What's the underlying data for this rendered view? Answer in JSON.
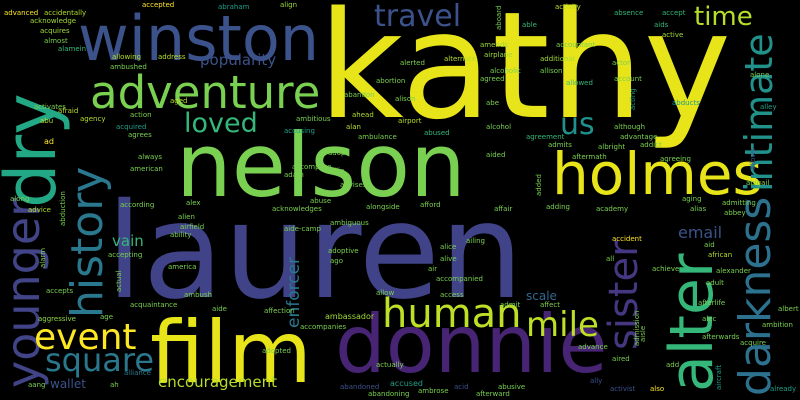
{
  "words": [
    {
      "text": "kathy",
      "color": "#e7e419",
      "i": "w-kathy"
    },
    {
      "text": "lauren",
      "color": "#404387",
      "i": "w-lauren"
    },
    {
      "text": "nelson",
      "color": "#7ad151",
      "i": "w-nelson"
    },
    {
      "text": "film",
      "color": "#e7e419",
      "i": "w-film"
    },
    {
      "text": "donnie",
      "color": "#482475",
      "i": "w-donnie"
    },
    {
      "text": "winston",
      "color": "#3b528b",
      "i": "w-winston"
    },
    {
      "text": "dry",
      "color": "#22a884",
      "i": "w-dry"
    },
    {
      "text": "adventure",
      "color": "#7ad151",
      "i": "w-adventure"
    },
    {
      "text": "holmes",
      "color": "#e7e419",
      "i": "w-holmes"
    },
    {
      "text": "history",
      "color": "#2a788e",
      "i": "w-history"
    },
    {
      "text": "younger",
      "color": "#414487",
      "i": "w-younger"
    },
    {
      "text": "alter",
      "color": "#35b779",
      "i": "w-alter"
    },
    {
      "text": "darkness",
      "color": "#2c728e",
      "i": "w-darkness"
    },
    {
      "text": "intimate",
      "color": "#21918c",
      "i": "w-intimate"
    },
    {
      "text": "sister",
      "color": "#453781",
      "i": "w-sister"
    },
    {
      "text": "human",
      "color": "#bddf26",
      "i": "w-human"
    },
    {
      "text": "mile",
      "color": "#bddf26",
      "i": "w-mile"
    },
    {
      "text": "event",
      "color": "#fde725",
      "i": "w-event"
    },
    {
      "text": "square",
      "color": "#2a788e",
      "i": "w-square"
    },
    {
      "text": "travel",
      "color": "#3b528b",
      "i": "w-travel"
    },
    {
      "text": "time",
      "color": "#b5de2b",
      "i": "w-time"
    },
    {
      "text": "loved",
      "color": "#35b779",
      "i": "w-loved"
    },
    {
      "text": "us",
      "color": "#21918c",
      "i": "w-us"
    },
    {
      "text": "popularity",
      "color": "#3b528b",
      "i": "w-popularity"
    },
    {
      "text": "encouragement",
      "color": "#b5de2b",
      "i": "w-encouragement"
    },
    {
      "text": "enforcer",
      "color": "#2a788e",
      "i": "w-enforcer"
    },
    {
      "text": "email",
      "color": "#3b528b",
      "i": "w-email"
    },
    {
      "text": "vain",
      "color": "#35b779",
      "i": "w-vain"
    },
    {
      "text": "wallet",
      "color": "#3b528b",
      "i": "w-wallet"
    },
    {
      "text": "scale",
      "color": "#31688e",
      "i": "w-scale"
    },
    {
      "text": "ambassador",
      "color": "#a0da39",
      "i": "w-ambassador"
    },
    {
      "text": "accused",
      "color": "#1f9e89",
      "i": "w-accused"
    },
    {
      "text": "alliance",
      "color": "#2a788e",
      "i": "w-alliance"
    },
    {
      "text": "advice",
      "color": "#b5de2b",
      "i": "w-advice"
    },
    {
      "text": "aggressive",
      "color": "#90d743",
      "i": "w-aggressive"
    },
    {
      "text": "airport",
      "color": "#b5de2b",
      "i": "w-airport"
    },
    {
      "text": "african",
      "color": "#b5de2b",
      "i": "w-african"
    },
    {
      "text": "ad",
      "color": "#fde725",
      "i": "w-ad"
    },
    {
      "text": "abandoned",
      "color": "#3b528b",
      "i": "w-abandoned"
    },
    {
      "text": "acid",
      "color": "#3b528b",
      "i": "w-acid"
    },
    {
      "text": "abusive",
      "color": "#7ad151",
      "i": "w-abusive"
    },
    {
      "text": "afterward",
      "color": "#7ad151",
      "i": "w-afterward"
    },
    {
      "text": "ally",
      "color": "#3b528b",
      "i": "w-ally"
    },
    {
      "text": "activist",
      "color": "#3b528b",
      "i": "w-activist"
    },
    {
      "text": "also",
      "color": "#fde725",
      "i": "w-also"
    },
    {
      "text": "already",
      "color": "#1f9e89",
      "i": "w-already"
    },
    {
      "text": "aircraft",
      "color": "#1f9e89",
      "i": "w-aircraft"
    },
    {
      "text": "advanced",
      "color": "#fde725",
      "i": "w-advanced"
    },
    {
      "text": "accidentally",
      "color": "#b5de2b",
      "i": "w-accidentally"
    },
    {
      "text": "acknowledge",
      "color": "#a0da39",
      "i": "w-acknowledge"
    },
    {
      "text": "acquires",
      "color": "#a0da39",
      "i": "w-acquires"
    },
    {
      "text": "almost",
      "color": "#7ad151",
      "i": "w-almost"
    },
    {
      "text": "alamein",
      "color": "#35b779",
      "i": "w-alamein"
    },
    {
      "text": "accepted",
      "color": "#fde725",
      "i": "w-accepted"
    },
    {
      "text": "abraham",
      "color": "#1f9e89",
      "i": "w-abraham"
    },
    {
      "text": "align",
      "color": "#a0da39",
      "i": "w-align"
    },
    {
      "text": "activity",
      "color": "#b5de2b",
      "i": "w-activity"
    },
    {
      "text": "absence",
      "color": "#35b779",
      "i": "w-absence"
    },
    {
      "text": "accept",
      "color": "#35b779",
      "i": "w-accept"
    },
    {
      "text": "aids",
      "color": "#a0da39",
      "i": "w-aids"
    },
    {
      "text": "active",
      "color": "#35b779",
      "i": "w-active"
    },
    {
      "text": "amends",
      "color": "#a0da39",
      "i": "w-amends"
    },
    {
      "text": "able",
      "color": "#a0da39",
      "i": "w-able"
    },
    {
      "text": "actor",
      "color": "#35b779",
      "i": "w-actor"
    },
    {
      "text": "alerted",
      "color": "#7ad151",
      "i": "w-alerted"
    },
    {
      "text": "additional",
      "color": "#7ad151",
      "i": "w-additional"
    },
    {
      "text": "allowing",
      "color": "#a0da39",
      "i": "w-allowing"
    },
    {
      "text": "address",
      "color": "#b5de2b",
      "i": "w-address"
    },
    {
      "text": "alternate",
      "color": "#b5de2b",
      "i": "w-alternate"
    },
    {
      "text": "airplane",
      "color": "#b5de2b",
      "i": "w-airplane"
    },
    {
      "text": "alcoholic",
      "color": "#a0da39",
      "i": "w-alcoholic"
    },
    {
      "text": "allison",
      "color": "#7ad151",
      "i": "w-allison"
    },
    {
      "text": "agreed",
      "color": "#7ad151",
      "i": "w-agreed"
    },
    {
      "text": "account",
      "color": "#7ad151",
      "i": "w-account"
    },
    {
      "text": "alone",
      "color": "#7ad151",
      "i": "w-alone"
    },
    {
      "text": "aged",
      "color": "#7ad151",
      "i": "w-aged"
    },
    {
      "text": "abortion",
      "color": "#b5de2b",
      "i": "w-abortion"
    },
    {
      "text": "allowed",
      "color": "#7ad151",
      "i": "w-allowed"
    },
    {
      "text": "acting",
      "color": "#35b779",
      "i": "w-acting"
    },
    {
      "text": "alley",
      "color": "#1f9e89",
      "i": "w-alley"
    },
    {
      "text": "abducts",
      "color": "#1f9e89",
      "i": "w-abducts"
    },
    {
      "text": "alison",
      "color": "#1f9e89",
      "i": "w-alison"
    },
    {
      "text": "abe",
      "color": "#7ad151",
      "i": "w-abe"
    },
    {
      "text": "activates",
      "color": "#7ad151",
      "i": "w-activates"
    },
    {
      "text": "afraid",
      "color": "#7ad151",
      "i": "w-afraid"
    },
    {
      "text": "abu",
      "color": "#b5de2b",
      "i": "w-abu"
    },
    {
      "text": "agency",
      "color": "#b5de2b",
      "i": "w-agency"
    },
    {
      "text": "ahead",
      "color": "#b5de2b",
      "i": "w-ahead"
    },
    {
      "text": "alan",
      "color": "#b5de2b",
      "i": "w-alan"
    },
    {
      "text": "ambitious",
      "color": "#b5de2b",
      "i": "w-ambitious"
    },
    {
      "text": "alcohol",
      "color": "#7ad151",
      "i": "w-alcohol"
    },
    {
      "text": "although",
      "color": "#7ad151",
      "i": "w-although"
    },
    {
      "text": "allows",
      "color": "#7ad151",
      "i": "w-allows"
    },
    {
      "text": "acquired",
      "color": "#3b528b",
      "i": "w-acquired"
    },
    {
      "text": "accusing",
      "color": "#1f9e89",
      "i": "w-accusing"
    },
    {
      "text": "abused",
      "color": "#1f9e89",
      "i": "w-abused"
    },
    {
      "text": "agreement",
      "color": "#35b779",
      "i": "w-agreement"
    },
    {
      "text": "advantage",
      "color": "#35b779",
      "i": "w-advantage"
    },
    {
      "text": "admits",
      "color": "#7ad151",
      "i": "w-admits"
    },
    {
      "text": "albright",
      "color": "#7ad151",
      "i": "w-albright"
    },
    {
      "text": "addict",
      "color": "#7ad151",
      "i": "w-addict"
    },
    {
      "text": "agrees",
      "color": "#7ad151",
      "i": "w-agrees"
    },
    {
      "text": "ambulance",
      "color": "#7ad151",
      "i": "w-ambulance"
    },
    {
      "text": "aftermath",
      "color": "#7ad151",
      "i": "w-aftermath"
    },
    {
      "text": "agreeing",
      "color": "#7ad151",
      "i": "w-agreeing"
    },
    {
      "text": "abigail",
      "color": "#7ad151",
      "i": "w-abigail"
    },
    {
      "text": "always",
      "color": "#7ad151",
      "i": "w-always"
    },
    {
      "text": "adopt",
      "color": "#7ad151",
      "i": "w-adopt"
    },
    {
      "text": "american",
      "color": "#7ad151",
      "i": "w-american"
    },
    {
      "text": "accomplice",
      "color": "#7ad151",
      "i": "w-accomplice"
    },
    {
      "text": "along",
      "color": "#7ad151",
      "i": "w-along"
    },
    {
      "text": "adam",
      "color": "#7ad151",
      "i": "w-adam"
    },
    {
      "text": "advises",
      "color": "#7ad151",
      "i": "w-advises"
    },
    {
      "text": "allie",
      "color": "#7ad151",
      "i": "w-allie"
    },
    {
      "text": "alex",
      "color": "#7ad151",
      "i": "w-alex"
    },
    {
      "text": "acknowledges",
      "color": "#7ad151",
      "i": "w-acknowledges"
    },
    {
      "text": "abuse",
      "color": "#7ad151",
      "i": "w-abuse"
    },
    {
      "text": "alongside",
      "color": "#7ad151",
      "i": "w-alongside"
    },
    {
      "text": "afford",
      "color": "#7ad151",
      "i": "w-afford"
    },
    {
      "text": "affair",
      "color": "#7ad151",
      "i": "w-affair"
    },
    {
      "text": "adding",
      "color": "#7ad151",
      "i": "w-adding"
    },
    {
      "text": "academy",
      "color": "#7ad151",
      "i": "w-academy"
    },
    {
      "text": "admitting",
      "color": "#7ad151",
      "i": "w-admitting"
    },
    {
      "text": "aging",
      "color": "#7ad151",
      "i": "w-aging"
    },
    {
      "text": "alias",
      "color": "#7ad151",
      "i": "w-alias"
    },
    {
      "text": "abbey",
      "color": "#7ad151",
      "i": "w-abbey"
    },
    {
      "text": "alien",
      "color": "#7ad151",
      "i": "w-alien"
    },
    {
      "text": "airfield",
      "color": "#7ad151",
      "i": "w-airfield"
    },
    {
      "text": "ability",
      "color": "#7ad151",
      "i": "w-ability"
    },
    {
      "text": "accepting",
      "color": "#7ad151",
      "i": "w-accepting"
    },
    {
      "text": "abduction",
      "color": "#7ad151",
      "i": "w-abduction"
    },
    {
      "text": "alarm",
      "color": "#7ad151",
      "i": "w-alarm"
    },
    {
      "text": "according",
      "color": "#7ad151",
      "i": "w-according"
    },
    {
      "text": "america",
      "color": "#7ad151",
      "i": "w-america"
    },
    {
      "text": "adoptive",
      "color": "#7ad151",
      "i": "w-adoptive"
    },
    {
      "text": "ago",
      "color": "#7ad151",
      "i": "w-ago"
    },
    {
      "text": "alice",
      "color": "#7ad151",
      "i": "w-alice"
    },
    {
      "text": "alive",
      "color": "#7ad151",
      "i": "w-alive"
    },
    {
      "text": "accompanied",
      "color": "#7ad151",
      "i": "w-accompanied"
    },
    {
      "text": "accident",
      "color": "#7ad151",
      "i": "w-accident"
    },
    {
      "text": "aid",
      "color": "#fde725",
      "i": "w-aid"
    },
    {
      "text": "achieve",
      "color": "#7ad151",
      "i": "w-achieve"
    },
    {
      "text": "alexander",
      "color": "#7ad151",
      "i": "w-alexander"
    },
    {
      "text": "adult",
      "color": "#7ad151",
      "i": "w-adult"
    },
    {
      "text": "accepts",
      "color": "#7ad151",
      "i": "w-accepts"
    },
    {
      "text": "actual",
      "color": "#7ad151",
      "i": "w-actual"
    },
    {
      "text": "ambush",
      "color": "#7ad151",
      "i": "w-ambush"
    },
    {
      "text": "acquaintance",
      "color": "#7ad151",
      "i": "w-acquaintance"
    },
    {
      "text": "allow",
      "color": "#7ad151",
      "i": "w-allow"
    },
    {
      "text": "affect",
      "color": "#7ad151",
      "i": "w-affect"
    },
    {
      "text": "afterlife",
      "color": "#7ad151",
      "i": "w-afterlife"
    },
    {
      "text": "albert",
      "color": "#7ad151",
      "i": "w-albert"
    },
    {
      "text": "alec",
      "color": "#7ad151",
      "i": "w-alec"
    },
    {
      "text": "admit",
      "color": "#7ad151",
      "i": "w-admit"
    },
    {
      "text": "aide",
      "color": "#7ad151",
      "i": "w-aide"
    },
    {
      "text": "affection",
      "color": "#7ad151",
      "i": "w-affection"
    },
    {
      "text": "age",
      "color": "#7ad151",
      "i": "w-age"
    },
    {
      "text": "accompanies",
      "color": "#7ad151",
      "i": "w-accompanies"
    },
    {
      "text": "afterwards",
      "color": "#7ad151",
      "i": "w-afterwards"
    },
    {
      "text": "acquire",
      "color": "#7ad151",
      "i": "w-acquire"
    },
    {
      "text": "ambition",
      "color": "#7ad151",
      "i": "w-ambition"
    },
    {
      "text": "adopted",
      "color": "#7ad151",
      "i": "w-adopted"
    },
    {
      "text": "add",
      "color": "#7ad151",
      "i": "w-add"
    },
    {
      "text": "advance",
      "color": "#7ad151",
      "i": "w-advance"
    },
    {
      "text": "aang",
      "color": "#7ad151",
      "i": "w-aang"
    },
    {
      "text": "ah",
      "color": "#7ad151",
      "i": "w-ah"
    },
    {
      "text": "abandoning",
      "color": "#7ad151",
      "i": "w-abandoning"
    },
    {
      "text": "ambrose",
      "color": "#7ad151",
      "i": "w-ambrose"
    },
    {
      "text": "ambushed",
      "color": "#7ad151",
      "i": "w-ambushed"
    },
    {
      "text": "action",
      "color": "#7ad151",
      "i": "w-action"
    },
    {
      "text": "accountant",
      "color": "#7ad151",
      "i": "w-accountant"
    },
    {
      "text": "aboard",
      "color": "#7ad151",
      "i": "w-aboard"
    },
    {
      "text": "aide-camp",
      "color": "#7ad151",
      "i": "w-aidecamp"
    },
    {
      "text": "aired",
      "color": "#7ad151",
      "i": "w-aired"
    },
    {
      "text": "all",
      "color": "#7ad151",
      "i": "w-all"
    },
    {
      "text": "ailing",
      "color": "#7ad151",
      "i": "w-ailing"
    },
    {
      "text": "air",
      "color": "#7ad151",
      "i": "w-air"
    },
    {
      "text": "access",
      "color": "#7ad151",
      "i": "w-access"
    },
    {
      "text": "actually",
      "color": "#7ad151",
      "i": "w-actually"
    },
    {
      "text": "ambiguous",
      "color": "#7ad151",
      "i": "w-ambiguous"
    },
    {
      "text": "abandon",
      "color": "#7ad151",
      "i": "w-abandon"
    },
    {
      "text": "added",
      "color": "#7ad151",
      "i": "w-added"
    },
    {
      "text": "aided",
      "color": "#7ad151",
      "i": "w-aided"
    },
    {
      "text": "aisle",
      "color": "#7ad151",
      "i": "w-aisle"
    },
    {
      "text": "admission",
      "color": "#7ad151",
      "i": "w-admission"
    },
    {
      "text": "activated",
      "color": "#7ad151",
      "i": "w-activated"
    }
  ]
}
